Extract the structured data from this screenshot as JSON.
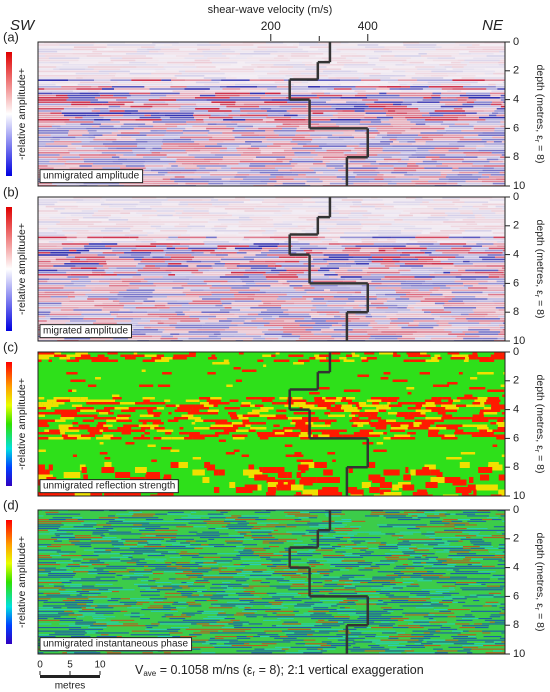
{
  "header": {
    "top_axis_label": "shear-wave velocity (m/s)",
    "left_label": "SW",
    "right_label": "NE"
  },
  "profile": {
    "xlim": [
      -280,
      683
    ],
    "xticks": [
      200,
      400
    ],
    "xminor": [
      300
    ],
    "depths": [
      0,
      1.4,
      2.6,
      4.0,
      6.0,
      8.0,
      10
    ],
    "velocities": [
      322,
      297,
      239,
      280,
      400,
      357
    ],
    "color": "#333333"
  },
  "chart_data": [
    {
      "type": "radargram",
      "panel": "(a)",
      "inset": "unmigrated amplitude",
      "colorbar_label": "-relative amplitude+",
      "palette": "amplitude",
      "ylim": [
        0,
        10
      ],
      "yticks": [
        0,
        2,
        4,
        6,
        8,
        10
      ]
    },
    {
      "type": "radargram",
      "panel": "(b)",
      "inset": "migrated amplitude",
      "colorbar_label": "-relative amplitude+",
      "palette": "amplitude",
      "ylim": [
        0,
        10
      ],
      "yticks": [
        0,
        2,
        4,
        6,
        8,
        10
      ]
    },
    {
      "type": "radargram",
      "panel": "(c)",
      "inset": "unmigrated reflection strength",
      "colorbar_label": "-relative amplitude+",
      "palette": "strength",
      "ylim": [
        0,
        10
      ],
      "yticks": [
        0,
        2,
        4,
        6,
        8,
        10
      ]
    },
    {
      "type": "radargram",
      "panel": "(d)",
      "inset": "unmigrated instantaneous phase",
      "colorbar_label": "-relative amplitude+",
      "palette": "phase",
      "ylim": [
        0,
        10
      ],
      "yticks": [
        0,
        2,
        4,
        6,
        8,
        10
      ]
    }
  ],
  "depth_label": {
    "pre": "depth (metres, ε",
    "sub": "r",
    "post": " = 8)"
  },
  "footer": {
    "v": "V",
    "v_sub": "ave",
    "mid": " = 0.1058 m/ns (ε",
    "eps_sub": "r",
    "post": " = 8); 2:1 vertical exaggeration",
    "scale_ticks": [
      0,
      5,
      10
    ],
    "scale_label": "metres"
  }
}
